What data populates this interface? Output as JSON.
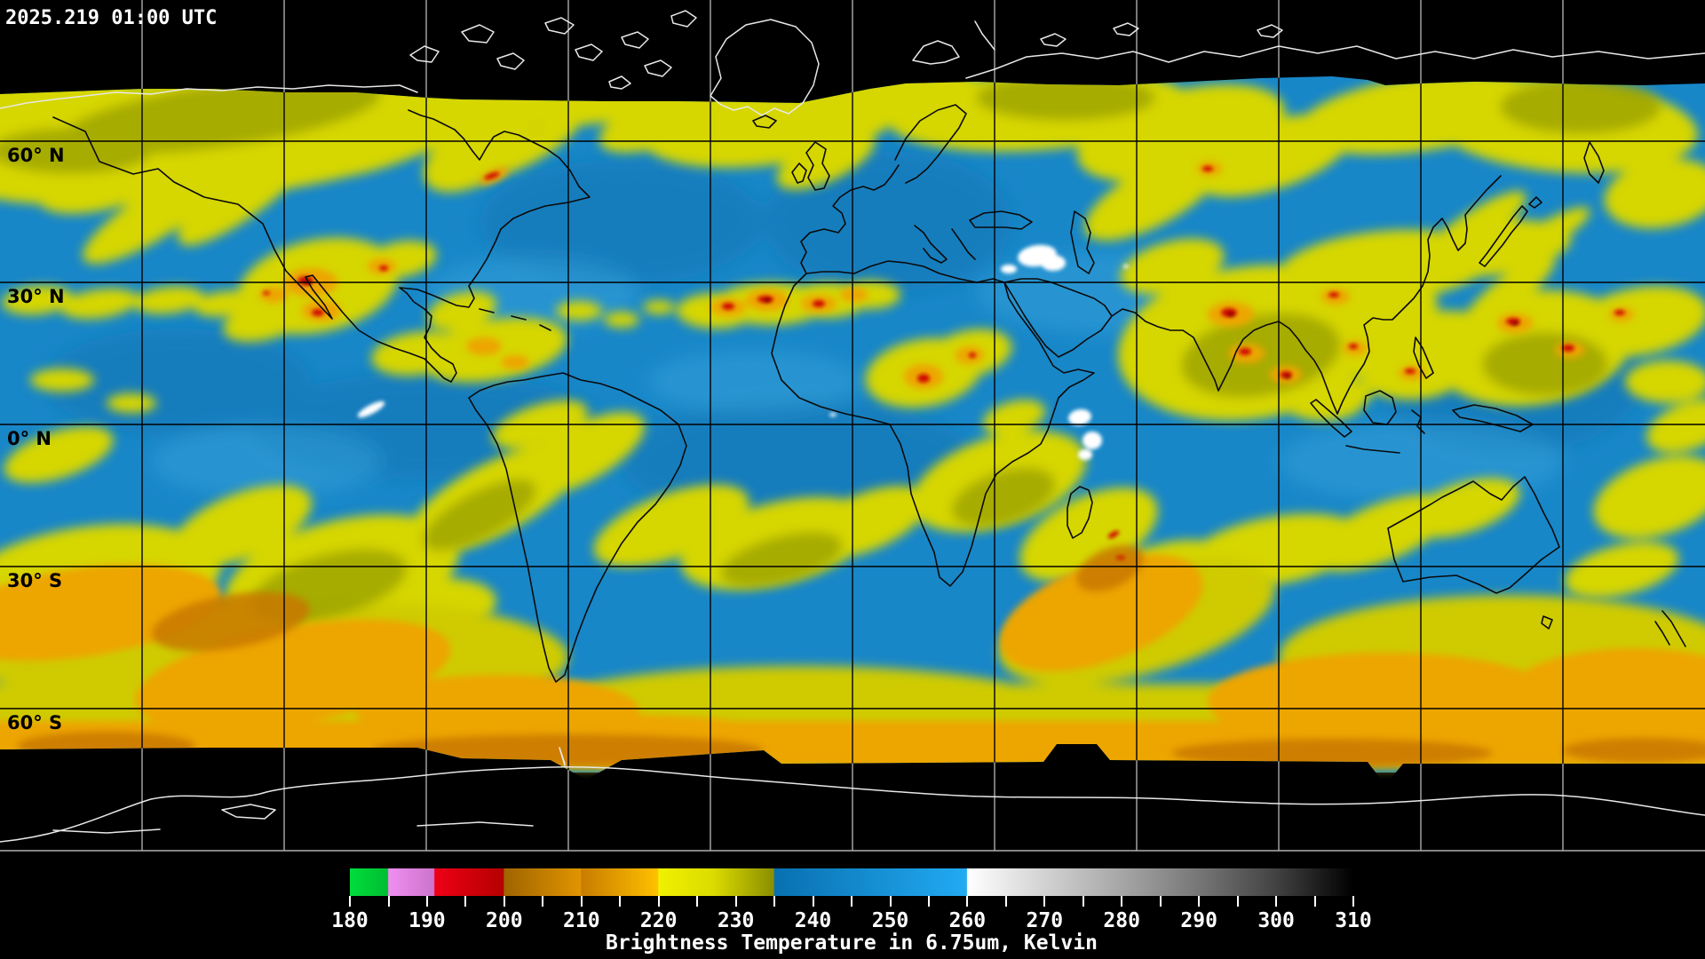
{
  "header": {
    "timestamp": "2025.219 01:00 UTC"
  },
  "map": {
    "projection": "global lat-lon grid",
    "longitude_grid_spacing_deg": 30,
    "latitude_grid_spacing_deg": 30,
    "latitude_labels": [
      {
        "label": "60° N"
      },
      {
        "label": "30° N"
      },
      {
        "label": "0° N"
      },
      {
        "label": "30° S"
      },
      {
        "label": "60° S"
      }
    ]
  },
  "map_palette": {
    "ocean_dry_blue": "#1887C8",
    "cloud_yellow": "#D6D600",
    "cloud_olive": "#949A00",
    "cloud_orange": "#EDA500",
    "deep_convection_red": "#D01000",
    "warmest_white": "#FFFFFF",
    "no_data_black": "#000000",
    "coastline_over_data": "#000000",
    "coastline_polar": "#E8E8E8"
  },
  "colorbar": {
    "title": "Brightness Temperature in 6.75um, Kelvin",
    "units": "Kelvin",
    "wavelength_um": "6.75",
    "min_value": 180,
    "max_value": 310,
    "labeled_tick_step": 10,
    "minor_tick_step": 5,
    "tick_labels": [
      "180",
      "190",
      "200",
      "210",
      "220",
      "230",
      "240",
      "250",
      "260",
      "270",
      "280",
      "290",
      "300",
      "310"
    ],
    "gradient_stops": [
      {
        "value": 180,
        "color": "#00DC3C"
      },
      {
        "value": 184.9,
        "color": "#00BE32"
      },
      {
        "value": 185,
        "color": "#F08EF0"
      },
      {
        "value": 190.9,
        "color": "#CC74CC"
      },
      {
        "value": 191,
        "color": "#EE0016"
      },
      {
        "value": 199.9,
        "color": "#B40000"
      },
      {
        "value": 200,
        "color": "#A06400"
      },
      {
        "value": 209.9,
        "color": "#E09400"
      },
      {
        "value": 210,
        "color": "#C87C00"
      },
      {
        "value": 219.9,
        "color": "#FFC000"
      },
      {
        "value": 220,
        "color": "#F0F000"
      },
      {
        "value": 227,
        "color": "#DCDC00"
      },
      {
        "value": 234.9,
        "color": "#8A8E00"
      },
      {
        "value": 235,
        "color": "#0870B0"
      },
      {
        "value": 259.9,
        "color": "#22AAF2"
      },
      {
        "value": 260,
        "color": "#FFFFFF"
      },
      {
        "value": 270,
        "color": "#D2D2D2"
      },
      {
        "value": 280,
        "color": "#A6A6A6"
      },
      {
        "value": 290,
        "color": "#767676"
      },
      {
        "value": 300,
        "color": "#424242"
      },
      {
        "value": 310,
        "color": "#000000"
      }
    ]
  }
}
